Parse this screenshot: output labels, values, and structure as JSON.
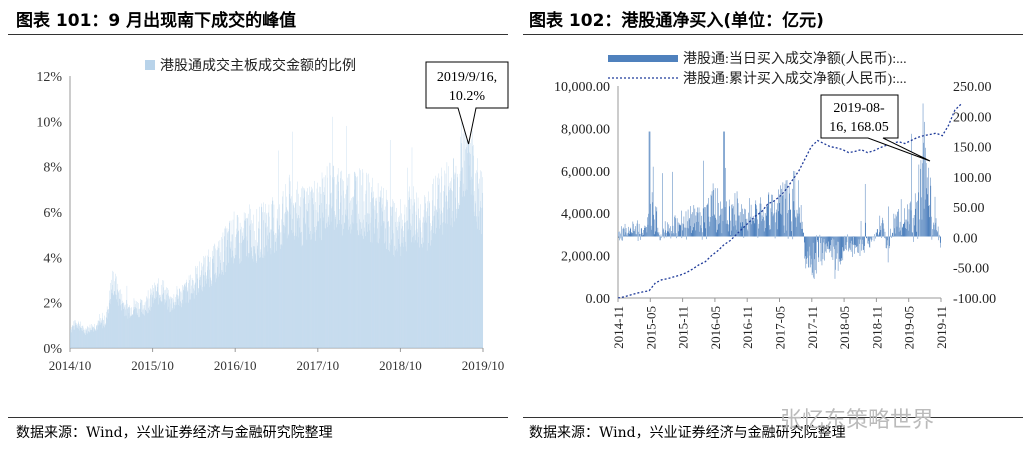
{
  "left": {
    "title": "图表 101：9 月出现南下成交的峰值",
    "source": "数据来源：Wind，兴业证券经济与金融研究院整理",
    "chart_data": {
      "type": "bar",
      "legend": "港股通成交主板成交金额的比例",
      "yticks": [
        "0%",
        "2%",
        "4%",
        "6%",
        "8%",
        "10%",
        "12%"
      ],
      "ylim": [
        0,
        12
      ],
      "xticks": [
        "2014/10",
        "2015/10",
        "2016/10",
        "2017/10",
        "2018/10",
        "2019/10"
      ],
      "annotation": {
        "line1": "2019/9/16,",
        "line2": "10.2%"
      },
      "series_monthly_pct": [
        0.9,
        1.2,
        0.8,
        1.0,
        1.1,
        1.3,
        3.2,
        2.4,
        1.8,
        2.0,
        1.9,
        2.2,
        2.6,
        2.8,
        2.1,
        2.4,
        2.6,
        2.9,
        3.3,
        3.7,
        3.9,
        4.3,
        4.8,
        5.3,
        5.0,
        5.6,
        5.3,
        5.6,
        5.9,
        5.7,
        6.1,
        6.8,
        6.4,
        6.2,
        6.7,
        6.5,
        7.1,
        7.5,
        6.9,
        7.0,
        7.3,
        6.9,
        6.7,
        6.4,
        6.3,
        5.9,
        5.6,
        5.9,
        6.4,
        6.1,
        5.9,
        6.6,
        6.9,
        7.3,
        7.6,
        8.4,
        10.2,
        7.6,
        7.0
      ]
    }
  },
  "right": {
    "title": "图表 102：港股通净买入(单位：亿元)",
    "source": "数据来源：Wind，兴业证券经济与金融研究院整理",
    "watermark": "张忆东策略世界",
    "chart_data": {
      "type": "bar+line",
      "legend_bar": "港股通:当日买入成交净额(人民币):...",
      "legend_line": "港股通:累计买入成交净额(人民币):...",
      "yticks_left": [
        "0.00",
        "2,000.00",
        "4,000.00",
        "6,000.00",
        "8,000.00",
        "10,000.00"
      ],
      "yticks_right": [
        "-100.00",
        "-50.00",
        "0.00",
        "50.00",
        "100.00",
        "150.00",
        "200.00",
        "250.00"
      ],
      "ylim_right": [
        -100,
        250
      ],
      "xticks": [
        "2014-11",
        "2015-05",
        "2015-11",
        "2016-05",
        "2016-11",
        "2017-05",
        "2017-11",
        "2018-05",
        "2018-11",
        "2019-05",
        "2019-11"
      ],
      "annotation": {
        "line1": "2019-08-",
        "line2": "16, 168.05"
      },
      "daily_net_buy_monthly": [
        5,
        10,
        8,
        12,
        15,
        20,
        60,
        -5,
        10,
        12,
        18,
        22,
        25,
        28,
        22,
        30,
        55,
        40,
        30,
        35,
        42,
        30,
        38,
        25,
        40,
        32,
        45,
        30,
        50,
        60,
        70,
        40,
        -30,
        -35,
        -45,
        -20,
        -15,
        -35,
        -25,
        -10,
        -20,
        -15,
        -10,
        -5,
        5,
        20,
        -20,
        15,
        30,
        25,
        35,
        40,
        120,
        60,
        30,
        -10
      ],
      "cumulative_monthly": [
        -100,
        -98,
        -95,
        -92,
        -90,
        -88,
        -75,
        -70,
        -68,
        -65,
        -62,
        -58,
        -52,
        -45,
        -40,
        -30,
        -22,
        -12,
        -5,
        5,
        15,
        25,
        35,
        42,
        55,
        60,
        68,
        80,
        95,
        110,
        130,
        150,
        160,
        155,
        150,
        148,
        145,
        140,
        142,
        145,
        140,
        143,
        148,
        152,
        155,
        158,
        155,
        160,
        165,
        168,
        170,
        172,
        168,
        185,
        210,
        220
      ]
    }
  }
}
